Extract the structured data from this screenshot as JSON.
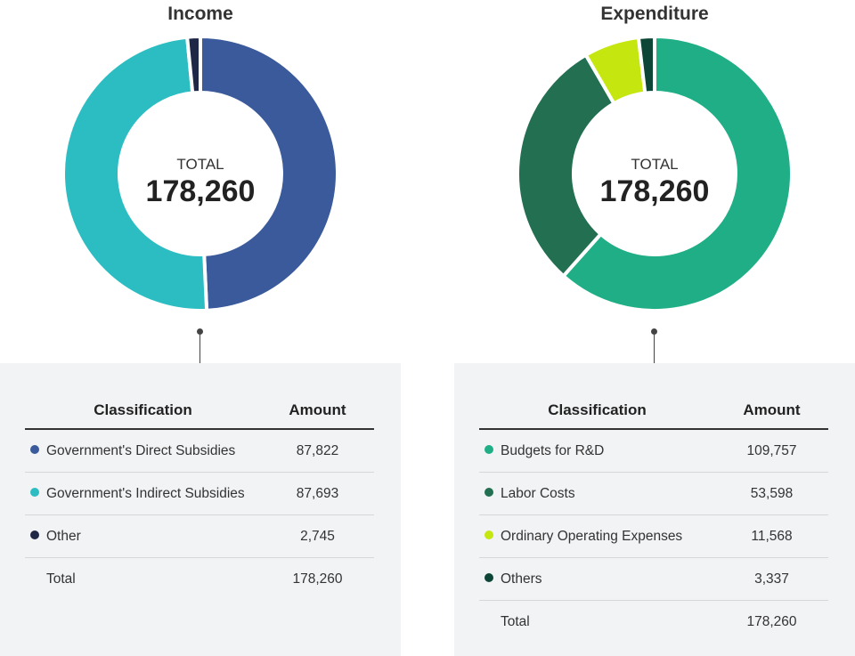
{
  "chart_data": [
    {
      "type": "pie",
      "title": "Income",
      "center_label": "TOTAL",
      "center_value": "178,260",
      "table_headers": {
        "classification": "Classification",
        "amount": "Amount"
      },
      "slices": [
        {
          "label": "Government's Direct Subsidies",
          "value": 87822,
          "display": "87,822",
          "color": "#3a5a9b"
        },
        {
          "label": "Government's Indirect Subsidies",
          "value": 87693,
          "display": "87,693",
          "color": "#2bbdc2"
        },
        {
          "label": "Other",
          "value": 2745,
          "display": "2,745",
          "color": "#1f2746"
        }
      ],
      "total": {
        "label": "Total",
        "display": "178,260"
      }
    },
    {
      "type": "pie",
      "title": "Expenditure",
      "center_label": "TOTAL",
      "center_value": "178,260",
      "table_headers": {
        "classification": "Classification",
        "amount": "Amount"
      },
      "slices": [
        {
          "label": "Budgets for R&D",
          "value": 109757,
          "display": "109,757",
          "color": "#1fae85"
        },
        {
          "label": "Labor Costs",
          "value": 53598,
          "display": "53,598",
          "color": "#226f52"
        },
        {
          "label": "Ordinary Operating Expenses",
          "value": 11568,
          "display": "11,568",
          "color": "#c5e60f"
        },
        {
          "label": "Others",
          "value": 3337,
          "display": "3,337",
          "color": "#0d4536"
        }
      ],
      "total": {
        "label": "Total",
        "display": "178,260"
      }
    }
  ]
}
